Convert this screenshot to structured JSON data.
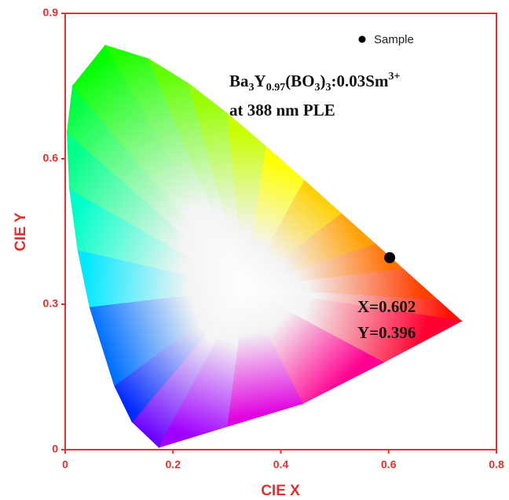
{
  "chart_data": {
    "type": "scatter",
    "xlabel": "CIE X",
    "ylabel": "CIE Y",
    "xlim": [
      0,
      0.8
    ],
    "ylim": [
      0,
      0.9
    ],
    "xticks": [
      0,
      0.2,
      0.4,
      0.6,
      0.8
    ],
    "yticks": [
      0,
      0.3,
      0.6,
      0.9
    ],
    "frame_color": "#e0312f",
    "series": [
      {
        "name": "Sample",
        "color": "#000000",
        "x": [
          0.602
        ],
        "values": [
          0.396
        ]
      }
    ],
    "annotations": {
      "formula": [
        "Ba",
        "3",
        "Y",
        "0.97",
        "(BO",
        "3",
        ")",
        "3",
        ":0.03Sm",
        "3+"
      ],
      "excitation": "at 388 nm PLE",
      "coordinates": [
        "X=0.602",
        "Y=0.396"
      ]
    }
  }
}
